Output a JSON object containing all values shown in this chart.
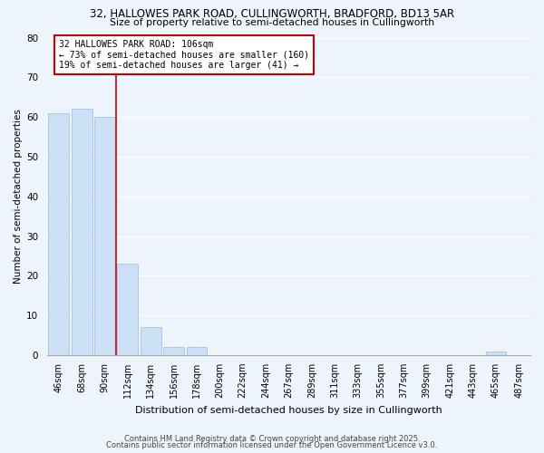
{
  "title1": "32, HALLOWES PARK ROAD, CULLINGWORTH, BRADFORD, BD13 5AR",
  "title2": "Size of property relative to semi-detached houses in Cullingworth",
  "xlabel": "Distribution of semi-detached houses by size in Cullingworth",
  "ylabel": "Number of semi-detached properties",
  "bar_labels": [
    "46sqm",
    "68sqm",
    "90sqm",
    "112sqm",
    "134sqm",
    "156sqm",
    "178sqm",
    "200sqm",
    "222sqm",
    "244sqm",
    "267sqm",
    "289sqm",
    "311sqm",
    "333sqm",
    "355sqm",
    "377sqm",
    "399sqm",
    "421sqm",
    "443sqm",
    "465sqm",
    "487sqm"
  ],
  "bar_values": [
    61,
    62,
    60,
    23,
    7,
    2,
    2,
    0,
    0,
    0,
    0,
    0,
    0,
    0,
    0,
    0,
    0,
    0,
    0,
    1,
    0
  ],
  "bar_color": "#cce0f5",
  "bar_edge_color": "#a0c4e8",
  "property_line_x": 2.5,
  "annotation_text": "32 HALLOWES PARK ROAD: 106sqm\n← 73% of semi-detached houses are smaller (160)\n19% of semi-detached houses are larger (41) →",
  "annotation_box_color": "#ffffff",
  "annotation_box_edge": "#cc0000",
  "vline_color": "#cc0000",
  "ylim": [
    0,
    80
  ],
  "yticks": [
    0,
    10,
    20,
    30,
    40,
    50,
    60,
    70,
    80
  ],
  "footer1": "Contains HM Land Registry data © Crown copyright and database right 2025.",
  "footer2": "Contains public sector information licensed under the Open Government Licence v3.0.",
  "bg_color": "#eef4fc",
  "grid_color": "#ffffff"
}
